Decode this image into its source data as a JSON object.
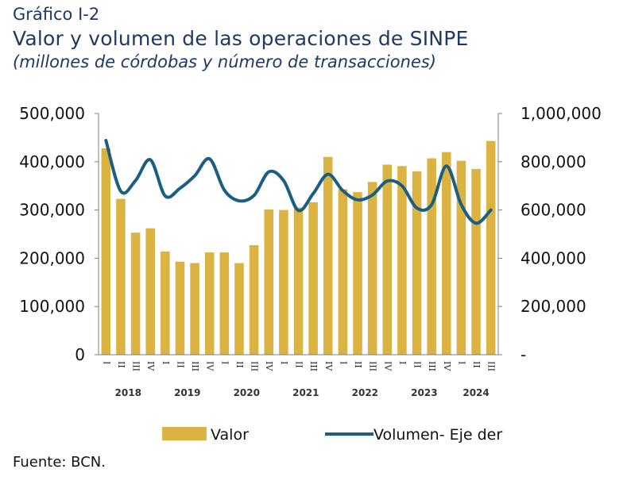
{
  "header": {
    "label": "Gráfico I-2",
    "title": "Valor y volumen de las operaciones de SINPE",
    "subtitle": "(millones de córdobas y número de transacciones)"
  },
  "source": "Fuente: BCN.",
  "colors": {
    "bar": "#dbb342",
    "line": "#1b5e84",
    "axis": "#7f7f7f"
  },
  "chart_data": {
    "type": "bar",
    "quarters": [
      "I",
      "II",
      "III",
      "IV",
      "I",
      "II",
      "III",
      "IV",
      "I",
      "II",
      "III",
      "IV",
      "I",
      "II",
      "III",
      "IV",
      "I",
      "II",
      "III",
      "IV",
      "I",
      "II",
      "III",
      "IV",
      "I",
      "II",
      "III"
    ],
    "years": [
      {
        "label": "2018",
        "start": 0,
        "end": 3
      },
      {
        "label": "2019",
        "start": 4,
        "end": 7
      },
      {
        "label": "2020",
        "start": 8,
        "end": 11
      },
      {
        "label": "2021",
        "start": 12,
        "end": 15
      },
      {
        "label": "2022",
        "start": 16,
        "end": 19
      },
      {
        "label": "2023",
        "start": 20,
        "end": 23
      },
      {
        "label": "2024",
        "start": 24,
        "end": 26
      }
    ],
    "series": [
      {
        "name": "Valor",
        "type": "bar",
        "axis": "left",
        "values": [
          428000,
          323000,
          253000,
          262000,
          214000,
          193000,
          190000,
          212000,
          212000,
          190000,
          227000,
          301000,
          300000,
          305000,
          316000,
          410000,
          343000,
          337000,
          358000,
          394000,
          391000,
          380000,
          407000,
          420000,
          402000,
          385000,
          443000
        ]
      },
      {
        "name": "Volumen- Eje der",
        "type": "line",
        "axis": "right",
        "values": [
          888000,
          678000,
          722000,
          808000,
          658000,
          690000,
          742000,
          812000,
          682000,
          638000,
          660000,
          758000,
          722000,
          598000,
          668000,
          748000,
          680000,
          642000,
          662000,
          720000,
          700000,
          608000,
          622000,
          782000,
          622000,
          545000,
          600000
        ]
      }
    ],
    "left_axis": {
      "ylim": [
        0,
        500000
      ],
      "ticks": [
        "0",
        "100,000",
        "200,000",
        "300,000",
        "400,000",
        "500,000"
      ]
    },
    "right_axis": {
      "ylim": [
        0,
        1000000
      ],
      "ticks": [
        "-",
        "200,000",
        "400,000",
        "600,000",
        "800,000",
        "1,000,000"
      ]
    },
    "legend": {
      "position": "bottom",
      "items": [
        "Valor",
        "Volumen- Eje der"
      ]
    }
  }
}
